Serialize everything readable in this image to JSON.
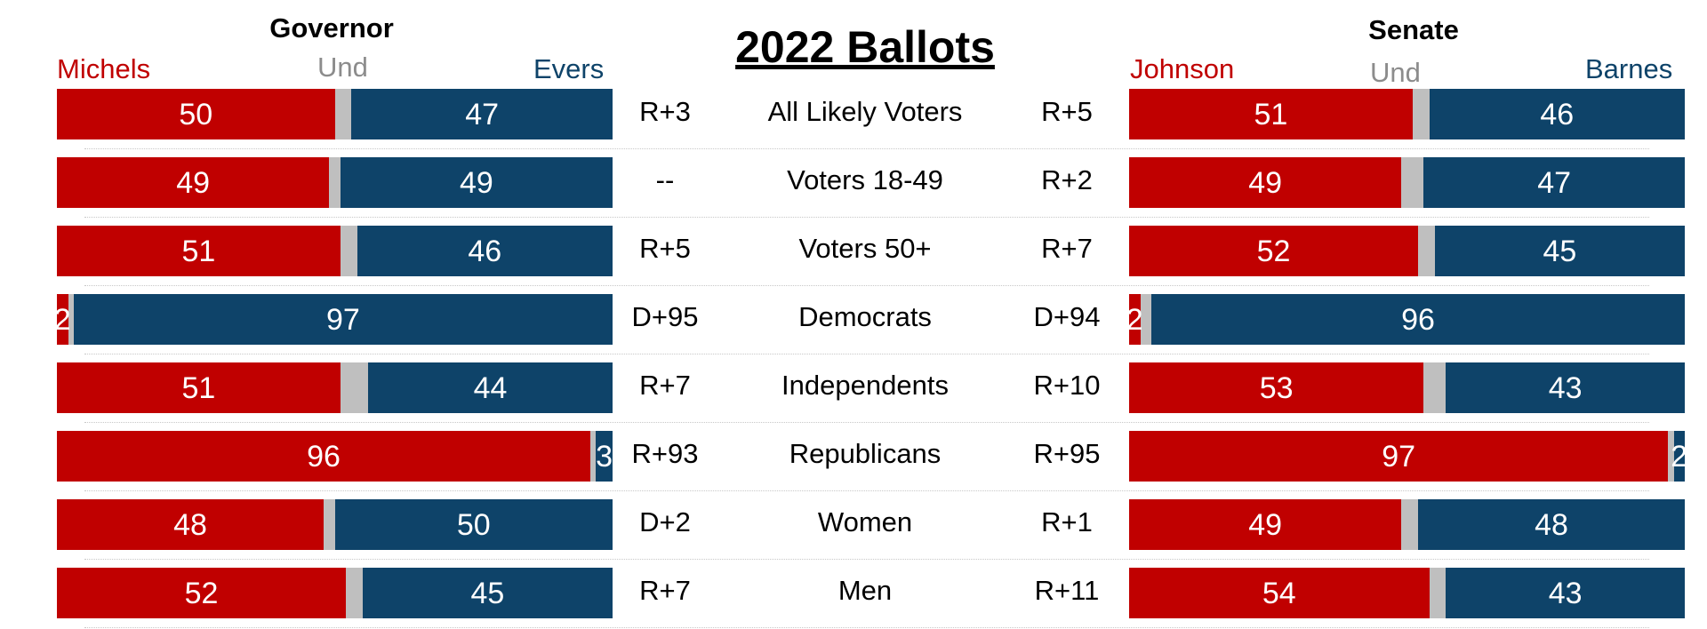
{
  "title": "2022 Ballots",
  "colors": {
    "rep": "#C00000",
    "und": "#BFBFBF",
    "dem": "#0E4369",
    "und_text": "#8C8C8C"
  },
  "governor": {
    "title": "Governor",
    "rep_name": "Michels",
    "und_name": "Und",
    "dem_name": "Evers"
  },
  "senate": {
    "title": "Senate",
    "rep_name": "Johnson",
    "und_name": "Und",
    "dem_name": "Barnes"
  },
  "chart_data": {
    "type": "bar",
    "title": "2022 Ballots",
    "stacked": true,
    "categories": [
      "All Likely Voters",
      "Voters 18-49",
      "Voters 50+",
      "Democrats",
      "Independents",
      "Republicans",
      "Women",
      "Men"
    ],
    "governor": {
      "title": "Governor",
      "series": [
        {
          "name": "Michels",
          "values": [
            50,
            49,
            51,
            2,
            51,
            96,
            48,
            52
          ]
        },
        {
          "name": "Und",
          "values": [
            3,
            2,
            3,
            1,
            5,
            1,
            2,
            3
          ]
        },
        {
          "name": "Evers",
          "values": [
            47,
            49,
            46,
            97,
            44,
            3,
            50,
            45
          ]
        }
      ],
      "margins": [
        "R+3",
        "--",
        "R+5",
        "D+95",
        "R+7",
        "R+93",
        "D+2",
        "R+7"
      ]
    },
    "senate": {
      "title": "Senate",
      "series": [
        {
          "name": "Johnson",
          "values": [
            51,
            49,
            52,
            2,
            53,
            97,
            49,
            54
          ]
        },
        {
          "name": "Und",
          "values": [
            3,
            4,
            3,
            2,
            4,
            1,
            3,
            3
          ]
        },
        {
          "name": "Barnes",
          "values": [
            46,
            47,
            45,
            96,
            43,
            2,
            48,
            43
          ]
        }
      ],
      "margins": [
        "R+5",
        "R+2",
        "R+7",
        "D+94",
        "R+10",
        "R+95",
        "R+1",
        "R+11"
      ]
    }
  }
}
